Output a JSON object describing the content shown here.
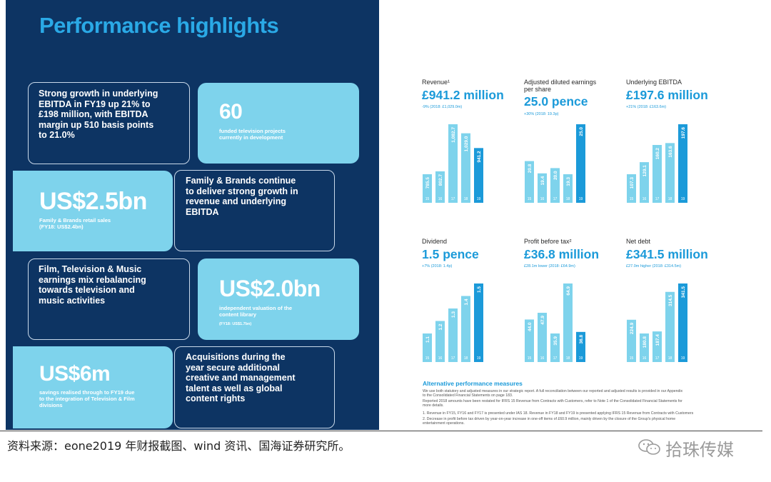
{
  "left": {
    "title": "Performance highlights",
    "box1": "Strong growth in underlying EBITDA in FY19 up 21% to £198 million, with EBITDA margin up 510 basis points to 21.0%",
    "box2_big": "60",
    "box2_sub": "funded television projects currently in development",
    "box3_big": "US$2.5bn",
    "box3_sub": "Family & Brands retail sales (FY18: US$2.4bn)",
    "box4": "Family & Brands continue to deliver strong growth in revenue and underlying EBITDA",
    "box5": "Film, Television & Music earnings mix rebalancing towards television and music activities",
    "box6_big": "US$2.0bn",
    "box6_sub": "independent valuation of the content library",
    "box6_sub2": "(FY18: US$1.7bn)",
    "box7_big": "US$6m",
    "box7_sub": "savings realised through to FY19 due to the integration of Television & Film divisions",
    "box8": "Acquisitions during the year secure additional creative and management talent as well as global content rights"
  },
  "charts": [
    {
      "title": "Revenue¹",
      "value": "£941.2 million",
      "note": "-9% (2018: £1,029.0m)",
      "years": [
        "15",
        "16",
        "17",
        "18",
        "19"
      ],
      "labels": [
        "785.5",
        "802.7",
        "1,082.7",
        "1,029.0",
        "941.2"
      ],
      "values": [
        785.5,
        802.7,
        1082.7,
        1029.0,
        941.2
      ]
    },
    {
      "title": "Adjusted diluted earnings per share",
      "value": "25.0 pence",
      "note": "+30% (2018: 19.3p)",
      "years": [
        "15",
        "16",
        "17",
        "18",
        "19"
      ],
      "labels": [
        "20.8",
        "19.4",
        "20.0",
        "19.3",
        "25.0"
      ],
      "values": [
        20.8,
        19.4,
        20.0,
        19.3,
        25.0
      ]
    },
    {
      "title": "Underlying EBITDA",
      "value": "£197.6 million",
      "note": "+21% (2018: £163.6m)",
      "years": [
        "15",
        "16",
        "17",
        "18",
        "19"
      ],
      "labels": [
        "107.3",
        "129.1",
        "160.2",
        "163.6",
        "197.6"
      ],
      "values": [
        107.3,
        129.1,
        160.2,
        163.6,
        197.6
      ]
    },
    {
      "title": "Dividend",
      "value": "1.5 pence",
      "note": "+7% (2018: 1.4p)",
      "years": [
        "15",
        "16",
        "17",
        "18",
        "19"
      ],
      "labels": [
        "1.1",
        "1.2",
        "1.3",
        "1.4",
        "1.5"
      ],
      "values": [
        1.1,
        1.2,
        1.3,
        1.4,
        1.5
      ]
    },
    {
      "title": "Profit before tax²",
      "value": "£36.8 million",
      "note": "£28.1m lower (2018: £64.9m)",
      "years": [
        "15",
        "16",
        "17",
        "18",
        "19"
      ],
      "labels": [
        "44.0",
        "47.9",
        "35.9",
        "64.9",
        "36.8"
      ],
      "values": [
        44.0,
        47.9,
        35.9,
        64.9,
        36.8
      ]
    },
    {
      "title": "Net debt",
      "value": "£341.5 million",
      "note": "£27.0m higher (2018: £314.5m)",
      "years": [
        "15",
        "16",
        "17",
        "18",
        "19"
      ],
      "labels": [
        "224.9",
        "180.8",
        "187.4",
        "314.5",
        "341.5"
      ],
      "values": [
        224.9,
        180.8,
        187.4,
        314.5,
        341.5
      ]
    }
  ],
  "colors": {
    "bar": "#7ed3ec",
    "bar_current": "#1b9ad9",
    "panel": "#0d3463"
  },
  "apm": {
    "title": "Alternative performance measures",
    "lines": [
      "We use both statutory and adjusted measures in our strategic report. A full reconciliation between our reported and adjusted results is provided in our Appendix",
      "to the Consolidated Financial Statements on page 183.",
      "Reported 2018 amounts have been restated for IFRS 15 Revenue from Contracts with Customers, refer to Note 1 of the Consolidated Financial Statements for",
      "more details.",
      "1.   Revenue in FY15, FY16 and FY17 is presented under IAS 18. Revenue in FY18 and FY19 is presented applying IFRS 15 Revenue from Contracts with Customers",
      "2.   Decrease in profit before tax driven by year-on-year increase in one-off items of £60.9 million, mainly driven by the closure of the Group's physical home",
      "      entertainment operations."
    ]
  },
  "source": "资料来源：eone2019 年财报截图、wind 资讯、国海证券研究所。",
  "watermark": "拾珠传媒",
  "watermark_icon": "wechat-icon"
}
